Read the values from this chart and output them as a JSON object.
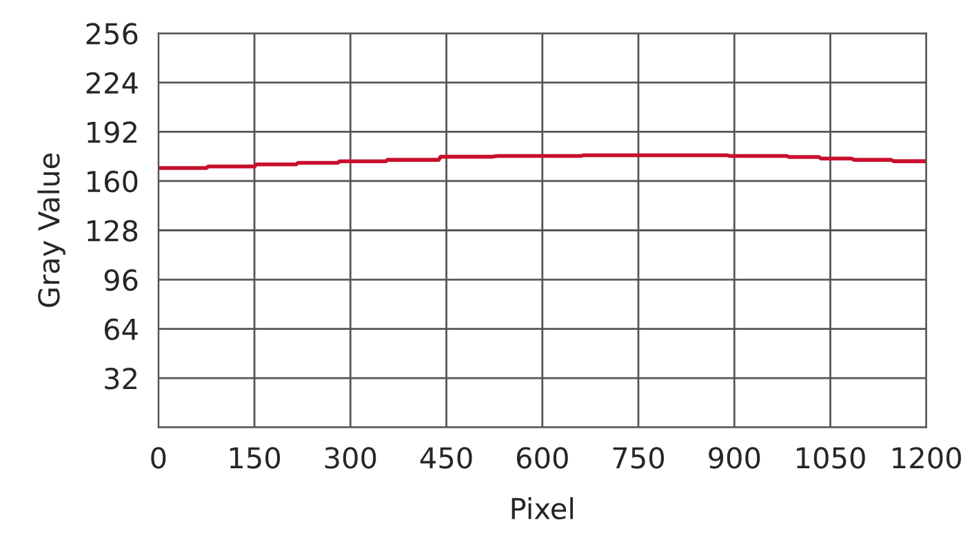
{
  "chart_data": {
    "type": "line",
    "xlabel": "Pixel",
    "ylabel": "Gray Value",
    "x": [
      0,
      75,
      78,
      150,
      153,
      215,
      218,
      280,
      283,
      355,
      358,
      438,
      441,
      520,
      530,
      660,
      665,
      888,
      893,
      982,
      986,
      1032,
      1036,
      1083,
      1087,
      1145,
      1149,
      1200
    ],
    "series": [
      {
        "color": "#c8102e",
        "values": [
          168.5,
          168.5,
          169.5,
          169.5,
          170.8,
          170.8,
          171.8,
          171.8,
          172.8,
          172.8,
          173.8,
          173.8,
          175.8,
          175.8,
          176.3,
          176.3,
          176.8,
          176.8,
          176.3,
          176.3,
          175.6,
          175.6,
          174.6,
          174.6,
          173.8,
          173.8,
          172.9,
          172.9
        ]
      }
    ],
    "xlim": [
      0,
      1200
    ],
    "xticks": [
      0,
      150,
      300,
      450,
      600,
      750,
      900,
      1050,
      1200
    ],
    "ylim": [
      0,
      256
    ],
    "yticks": [
      {
        "value": 0,
        "label": null
      },
      32,
      64,
      96,
      128,
      160,
      192,
      224,
      256
    ],
    "grid": true,
    "legend": false
  }
}
